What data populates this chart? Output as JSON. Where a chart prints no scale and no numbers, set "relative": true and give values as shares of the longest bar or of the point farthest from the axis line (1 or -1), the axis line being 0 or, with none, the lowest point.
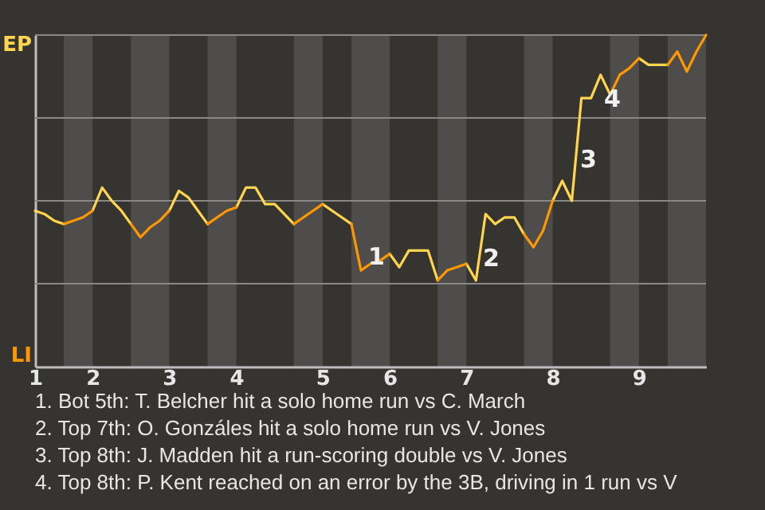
{
  "chart_data": {
    "type": "line",
    "relative": true,
    "categories": [
      "1",
      null,
      null,
      null,
      null,
      null,
      "2",
      null,
      null,
      null,
      null,
      null,
      null,
      null,
      "3",
      null,
      null,
      null,
      null,
      null,
      null,
      "4",
      null,
      null,
      null,
      null,
      null,
      null,
      null,
      null,
      "5",
      null,
      null,
      null,
      null,
      null,
      null,
      "6",
      null,
      null,
      null,
      null,
      null,
      null,
      null,
      "7",
      null,
      null,
      null,
      null,
      null,
      null,
      null,
      null,
      "8",
      null,
      null,
      null,
      null,
      null,
      null,
      null,
      null,
      "9",
      null,
      null,
      null,
      null,
      null,
      null,
      null
    ],
    "series": [
      {
        "color": "#ffd54f",
        "values": [
          0.47,
          0.46,
          0.44,
          0.43,
          null,
          null,
          0.47,
          0.54,
          0.5,
          0.47,
          0.43,
          null,
          null,
          null,
          0.47,
          0.53,
          0.51,
          0.47,
          0.43,
          null,
          null,
          0.48,
          0.54,
          0.54,
          0.49,
          0.49,
          0.46,
          0.43,
          null,
          null,
          0.49,
          0.47,
          0.45,
          0.43,
          null,
          null,
          null,
          0.34,
          0.3,
          0.35,
          0.35,
          0.35,
          0.26,
          null,
          null,
          0.31,
          0.26,
          0.46,
          0.43,
          0.45,
          0.45,
          0.4,
          null,
          null,
          0.5,
          0.56,
          0.5,
          0.81,
          0.81,
          0.88,
          0.82,
          null,
          null,
          0.93,
          0.91,
          0.91,
          0.91,
          null,
          null,
          null,
          null
        ]
      },
      {
        "color": "#ff9800",
        "values": [
          null,
          null,
          null,
          0.43,
          0.44,
          0.45,
          0.47,
          null,
          null,
          null,
          0.43,
          0.39,
          0.42,
          0.44,
          0.47,
          null,
          null,
          null,
          0.43,
          0.45,
          0.47,
          0.48,
          null,
          null,
          null,
          null,
          null,
          0.43,
          0.45,
          0.47,
          0.49,
          null,
          null,
          0.43,
          0.29,
          0.31,
          0.32,
          0.34,
          null,
          null,
          null,
          null,
          0.26,
          0.29,
          0.3,
          0.31,
          null,
          null,
          null,
          null,
          null,
          0.4,
          0.36,
          0.41,
          0.5,
          null,
          null,
          null,
          null,
          null,
          0.82,
          0.88,
          0.9,
          0.93,
          null,
          null,
          0.91,
          0.95,
          0.89,
          0.95,
          1.0
        ]
      }
    ],
    "ref_lines": [
      {
        "axis": "y",
        "value": 0.25,
        "color": "#8a8886"
      },
      {
        "axis": "y",
        "value": 0.5,
        "color": "#8a8886"
      },
      {
        "axis": "y",
        "value": 0.75,
        "color": "#8a8886"
      },
      {
        "axis": "y",
        "value": 1,
        "color": "#8a8886"
      }
    ],
    "line_style": "solid",
    "annotations": [
      "EP",
      "LI",
      "1",
      "2",
      "3",
      "4",
      "1. Bot 5th: T. Belcher hit a solo home run vs C. March",
      "2. Top 7th: O. Gonzáles hit a solo home run vs V. Jones",
      "3. Top 8th: J. Madden hit a run-scoring double vs V. Jones",
      "4. Top 8th: P. Kent reached on an error by the 3B, driving in 1 run vs V"
    ]
  }
}
